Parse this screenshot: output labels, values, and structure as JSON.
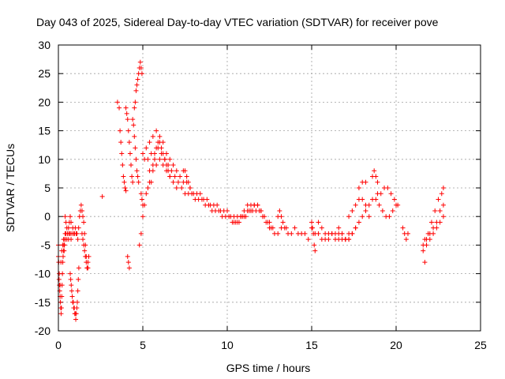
{
  "chart_data": {
    "type": "scatter",
    "title": "Day 043 of 2025, Sidereal Day-to-day VTEC variation (SDTVAR) for receiver pove",
    "xlabel": "GPS time / hours",
    "ylabel": "SDTVAR / TECUs",
    "xlim": [
      0,
      25
    ],
    "ylim": [
      -20,
      30
    ],
    "xticks": [
      0,
      5,
      10,
      15,
      20,
      25
    ],
    "yticks": [
      -20,
      -15,
      -10,
      -5,
      0,
      5,
      10,
      15,
      20,
      25,
      30
    ],
    "grid": true,
    "marker": "+",
    "series": [
      {
        "name": "SDTVAR",
        "color": "#ff0000",
        "x": [
          0.0,
          0.05,
          0.1,
          0.15,
          0.2,
          0.25,
          0.3,
          0.35,
          0.4,
          0.45,
          0.5,
          0.55,
          0.6,
          0.65,
          0.7,
          0.75,
          0.8,
          0.85,
          0.9,
          0.95,
          1.0,
          1.05,
          1.1,
          1.15,
          1.2,
          1.25,
          1.3,
          1.35,
          1.4,
          1.45,
          1.5,
          1.55,
          1.6,
          1.65,
          1.7,
          1.75,
          1.8,
          0.0,
          0.02,
          0.04,
          0.06,
          0.08,
          0.1,
          0.12,
          0.14,
          0.16,
          0.18,
          0.2,
          0.22,
          0.24,
          0.26,
          0.28,
          0.3,
          0.32,
          0.34,
          0.36,
          0.38,
          0.4,
          0.7,
          0.73,
          0.76,
          0.79,
          0.82,
          0.85,
          0.88,
          0.91,
          0.94,
          0.97,
          1.0,
          1.03,
          1.06,
          1.09,
          1.12,
          1.15,
          1.18,
          1.21,
          1.4,
          1.45,
          1.5,
          1.55,
          1.6,
          1.65,
          1.7,
          1.75,
          0.4,
          0.45,
          0.5,
          0.55,
          0.6,
          0.65,
          0.7,
          0.75,
          2.6,
          3.5,
          3.6,
          3.65,
          3.7,
          3.75,
          3.8,
          3.85,
          3.9,
          3.95,
          4.0,
          4.0,
          4.05,
          4.1,
          4.15,
          4.2,
          4.25,
          4.3,
          4.35,
          4.4,
          4.1,
          4.15,
          4.2,
          4.4,
          4.45,
          4.5,
          4.55,
          4.6,
          4.65,
          4.7,
          4.75,
          4.5,
          4.55,
          4.6,
          4.65,
          4.7,
          4.75,
          4.8,
          4.85,
          4.9,
          4.95,
          4.8,
          4.9,
          5.0,
          5.1,
          5.2,
          5.3,
          5.4,
          4.9,
          4.95,
          5.0,
          5.0,
          5.2,
          5.4,
          5.6,
          5.8,
          6.0,
          6.2,
          6.4,
          6.6,
          6.8,
          7.0,
          7.2,
          7.4,
          7.6,
          7.8,
          8.0,
          8.2,
          8.4,
          8.6,
          8.8,
          9.0,
          9.2,
          9.4,
          9.6,
          9.8,
          10.0,
          10.2,
          10.4,
          10.6,
          10.8,
          11.0,
          11.2,
          11.4,
          11.6,
          11.8,
          12.0,
          12.2,
          12.4,
          5.1,
          5.3,
          5.5,
          5.7,
          5.9,
          6.1,
          6.3,
          6.5,
          6.7,
          6.9,
          7.1,
          7.3,
          7.5,
          7.7,
          7.9,
          8.1,
          8.3,
          8.5,
          8.7,
          8.9,
          9.1,
          9.3,
          9.5,
          9.7,
          9.9,
          10.1,
          10.3,
          10.5,
          10.7,
          10.9,
          11.1,
          11.3,
          11.5,
          11.7,
          11.9,
          12.1,
          12.3,
          12.5,
          5.5,
          5.6,
          5.7,
          5.8,
          5.9,
          6.0,
          6.1,
          6.2,
          6.3,
          6.4,
          6.5,
          6.6,
          5.4,
          5.6,
          5.8,
          6.0,
          6.2,
          6.4,
          6.6,
          6.8,
          7.0,
          7.4,
          7.5,
          7.6,
          7.7,
          7.8,
          10.4,
          10.6,
          10.8,
          11.0,
          11.2,
          11.4,
          11.6,
          11.8,
          12.0,
          12.5,
          12.6,
          12.7,
          12.8,
          13.0,
          13.2,
          13.4,
          13.6,
          13.8,
          14.0,
          14.2,
          14.4,
          14.6,
          14.8,
          13.0,
          13.1,
          13.2,
          13.3,
          13.5,
          15.0,
          15.05,
          15.1,
          15.15,
          15.2,
          15.0,
          15.2,
          15.4,
          15.6,
          15.8,
          16.0,
          16.2,
          16.4,
          16.6,
          16.8,
          17.0,
          17.2,
          15.4,
          15.6,
          15.8,
          16.0,
          16.2,
          16.4,
          16.6,
          16.8,
          17.0,
          17.2,
          17.4,
          16.6,
          16.8,
          17.0,
          17.2,
          17.4,
          17.6,
          17.2,
          17.4,
          17.6,
          17.8,
          18.0,
          18.2,
          18.4,
          17.6,
          17.8,
          18.0,
          18.2,
          18.4,
          18.6,
          17.8,
          18.0,
          18.2,
          18.6,
          18.7,
          18.8,
          18.9,
          18.8,
          19.0,
          19.2,
          19.4,
          19.6,
          19.8,
          20.0,
          18.9,
          19.1,
          19.3,
          19.5,
          19.7,
          19.9,
          20.1,
          20.4,
          20.5,
          20.6,
          20.7,
          21.6,
          21.7,
          21.7,
          21.9,
          22.1,
          22.3,
          22.5,
          22.7,
          22.8,
          21.6,
          21.8,
          22.0,
          22.2,
          22.4,
          22.6,
          22.8,
          21.8,
          22.0,
          22.2,
          22.4,
          22.6,
          22.8
        ],
        "y": [
          -7,
          -10,
          -12,
          -8,
          -6,
          -5,
          -4,
          -5,
          -4,
          -3,
          -4,
          -3,
          -4,
          -3,
          -3,
          -4,
          -3,
          -2,
          -3,
          -3,
          -2,
          -3,
          -3,
          -4,
          -2,
          0,
          1,
          2,
          1,
          0,
          -1,
          -3,
          -5,
          -7,
          -9,
          -8,
          -7,
          -5,
          -8,
          -11,
          -12,
          -13,
          -14,
          -15,
          -16,
          -17,
          -16,
          -14,
          -12,
          -10,
          -8,
          -7,
          -6,
          -5,
          -6,
          -5,
          -4,
          -3,
          -10,
          -11,
          -12,
          -13,
          -14,
          -15,
          -15,
          -16,
          -16,
          -17,
          -17,
          -18,
          -17,
          -16,
          -15,
          -13,
          -11,
          -9,
          -3,
          -4,
          -5,
          -6,
          -7,
          -8,
          -9,
          -9,
          0,
          -1,
          -2,
          -3,
          -2,
          -1,
          0,
          -1,
          3.5,
          20,
          19,
          15,
          13,
          11,
          9,
          7,
          6,
          5,
          4.5,
          19,
          18,
          17,
          15,
          13,
          11,
          9,
          7,
          6,
          -7,
          -8,
          -9,
          17,
          16,
          14,
          12,
          10,
          8,
          7,
          6,
          19,
          20,
          22,
          23,
          24,
          25,
          26,
          27,
          26,
          25,
          -5,
          -3,
          0,
          2,
          4,
          5,
          6,
          4,
          3,
          2,
          11,
          12,
          13,
          14,
          15,
          14,
          13,
          11,
          10,
          9,
          8,
          7,
          6,
          6,
          5,
          4,
          4,
          4,
          3,
          3,
          2,
          2,
          2,
          1,
          1,
          1,
          0,
          0,
          0,
          0,
          1,
          2,
          2,
          2,
          2,
          1,
          0,
          -1,
          10,
          10,
          11,
          11,
          12,
          11,
          10,
          9,
          8,
          7,
          6,
          5,
          4,
          4,
          4,
          3,
          3,
          3,
          2,
          2,
          1,
          1,
          1,
          0,
          0,
          0,
          -1,
          -1,
          -1,
          0,
          0,
          1,
          1,
          1,
          1,
          0,
          -1,
          -2,
          6,
          8,
          10,
          12,
          13,
          13,
          12,
          11,
          10,
          9,
          8,
          7,
          8,
          9,
          9,
          10,
          9,
          8,
          7,
          6,
          5,
          8,
          8,
          7,
          6,
          5,
          -1,
          -1,
          0,
          0,
          1,
          1,
          2,
          2,
          1,
          -1,
          -2,
          -2,
          -3,
          -3,
          -2,
          -2,
          -3,
          -3,
          -2,
          -3,
          -3,
          -3,
          -4,
          0,
          1,
          0,
          -1,
          -2,
          -1,
          -2,
          -3,
          -5,
          -6,
          -2,
          -3,
          -3,
          -4,
          -4,
          -4,
          -3,
          -3,
          -4,
          -4,
          -4,
          -3,
          -1,
          -2,
          -3,
          -3,
          -3,
          -4,
          -3,
          -3,
          -4,
          -4,
          -3,
          -2,
          -3,
          -4,
          -4,
          -3,
          -2,
          0,
          1,
          2,
          3,
          3,
          2,
          0,
          -2,
          -1,
          0,
          1,
          2,
          3,
          5,
          6,
          6,
          7,
          8,
          7,
          6,
          3,
          2,
          1,
          0,
          0,
          1,
          2,
          4,
          4,
          5,
          5,
          4,
          3,
          2,
          -2,
          -3,
          -4,
          -3,
          -5,
          -8,
          -4,
          -3,
          -1,
          1,
          3,
          4,
          5,
          -6,
          -5,
          -4,
          -3,
          -2,
          -1,
          0,
          -4,
          -3,
          -2,
          -1,
          1,
          2
        ]
      }
    ]
  }
}
